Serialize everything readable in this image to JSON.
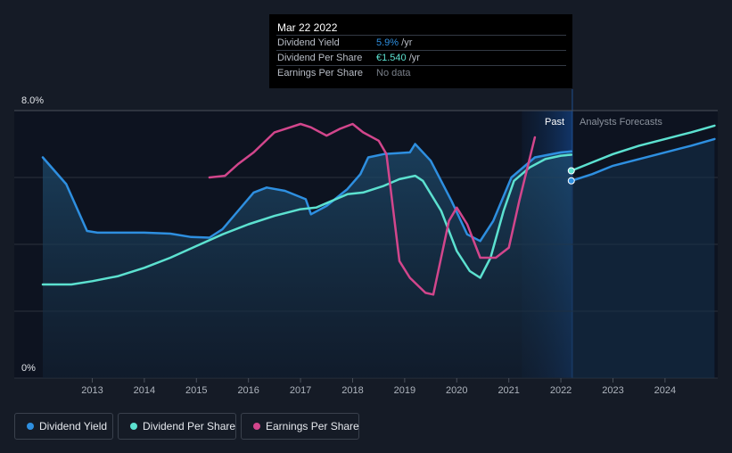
{
  "tooltip": {
    "date": "Mar 22 2022",
    "rows": [
      {
        "label": "Dividend Yield",
        "value": "5.9%",
        "suffix": " /yr",
        "color": "#2e8fe0"
      },
      {
        "label": "Dividend Per Share",
        "value": "€1.540",
        "suffix": " /yr",
        "color": "#5ce1d0"
      },
      {
        "label": "Earnings Per Share",
        "value": "No data",
        "suffix": "",
        "color": "#7a808a"
      }
    ]
  },
  "regions": {
    "past": "Past",
    "forecast": "Analysts Forecasts"
  },
  "legend": [
    {
      "label": "Dividend Yield",
      "color": "#2e8fe0"
    },
    {
      "label": "Dividend Per Share",
      "color": "#5ce1d0"
    },
    {
      "label": "Earnings Per Share",
      "color": "#d2468c"
    }
  ],
  "chart_data": {
    "type": "line",
    "title": "",
    "xlabel": "",
    "ylabel": "",
    "x_ticks": [
      "2013",
      "2014",
      "2015",
      "2016",
      "2017",
      "2018",
      "2019",
      "2020",
      "2021",
      "2022",
      "2023",
      "2024"
    ],
    "y_ticks": [
      "8.0%",
      "0%"
    ],
    "ylim": [
      0,
      8.0
    ],
    "xlim": [
      2012.05,
      2024.95
    ],
    "past_end": 2022.22,
    "forecast_start": 2021.25,
    "grid": true,
    "series": [
      {
        "name": "Dividend Yield",
        "color": "#2e8fe0",
        "points": [
          [
            2012.05,
            6.6
          ],
          [
            2012.5,
            5.8
          ],
          [
            2012.9,
            4.4
          ],
          [
            2013.1,
            4.35
          ],
          [
            2013.5,
            4.35
          ],
          [
            2014.0,
            4.35
          ],
          [
            2014.5,
            4.32
          ],
          [
            2014.9,
            4.22
          ],
          [
            2015.25,
            4.2
          ],
          [
            2015.5,
            4.45
          ],
          [
            2015.8,
            5.0
          ],
          [
            2016.1,
            5.55
          ],
          [
            2016.35,
            5.7
          ],
          [
            2016.7,
            5.6
          ],
          [
            2017.1,
            5.35
          ],
          [
            2017.2,
            4.9
          ],
          [
            2017.5,
            5.15
          ],
          [
            2017.9,
            5.65
          ],
          [
            2018.15,
            6.1
          ],
          [
            2018.3,
            6.6
          ],
          [
            2018.6,
            6.7
          ],
          [
            2019.1,
            6.75
          ],
          [
            2019.2,
            7.0
          ],
          [
            2019.5,
            6.5
          ],
          [
            2019.9,
            5.3
          ],
          [
            2020.2,
            4.3
          ],
          [
            2020.45,
            4.1
          ],
          [
            2020.7,
            4.7
          ],
          [
            2021.05,
            6.0
          ],
          [
            2021.5,
            6.6
          ],
          [
            2022.0,
            6.75
          ],
          [
            2022.2,
            6.78
          ]
        ]
      },
      {
        "name": "Dividend Per Share",
        "color": "#5ce1d0",
        "points": [
          [
            2012.05,
            2.8
          ],
          [
            2012.6,
            2.8
          ],
          [
            2013.0,
            2.9
          ],
          [
            2013.5,
            3.05
          ],
          [
            2014.0,
            3.3
          ],
          [
            2014.5,
            3.6
          ],
          [
            2015.0,
            3.95
          ],
          [
            2015.5,
            4.3
          ],
          [
            2016.0,
            4.6
          ],
          [
            2016.5,
            4.85
          ],
          [
            2017.0,
            5.05
          ],
          [
            2017.3,
            5.1
          ],
          [
            2017.6,
            5.3
          ],
          [
            2017.9,
            5.5
          ],
          [
            2018.2,
            5.55
          ],
          [
            2018.6,
            5.75
          ],
          [
            2018.9,
            5.95
          ],
          [
            2019.2,
            6.05
          ],
          [
            2019.35,
            5.9
          ],
          [
            2019.7,
            5.0
          ],
          [
            2020.0,
            3.8
          ],
          [
            2020.25,
            3.2
          ],
          [
            2020.45,
            3.0
          ],
          [
            2020.65,
            3.6
          ],
          [
            2020.9,
            5.0
          ],
          [
            2021.1,
            5.9
          ],
          [
            2021.4,
            6.3
          ],
          [
            2021.7,
            6.55
          ],
          [
            2022.0,
            6.65
          ],
          [
            2022.2,
            6.68
          ]
        ]
      },
      {
        "name": "Earnings Per Share",
        "color": "#d2468c",
        "points": [
          [
            2015.25,
            6.0
          ],
          [
            2015.55,
            6.05
          ],
          [
            2015.8,
            6.4
          ],
          [
            2016.1,
            6.75
          ],
          [
            2016.5,
            7.35
          ],
          [
            2016.8,
            7.5
          ],
          [
            2017.0,
            7.6
          ],
          [
            2017.2,
            7.5
          ],
          [
            2017.5,
            7.25
          ],
          [
            2017.75,
            7.45
          ],
          [
            2018.0,
            7.6
          ],
          [
            2018.2,
            7.35
          ],
          [
            2018.5,
            7.1
          ],
          [
            2018.65,
            6.7
          ],
          [
            2018.9,
            3.5
          ],
          [
            2019.1,
            3.0
          ],
          [
            2019.4,
            2.55
          ],
          [
            2019.55,
            2.5
          ],
          [
            2019.85,
            4.7
          ],
          [
            2020.0,
            5.1
          ],
          [
            2020.2,
            4.6
          ],
          [
            2020.45,
            3.6
          ],
          [
            2020.75,
            3.6
          ],
          [
            2021.0,
            3.9
          ],
          [
            2021.2,
            5.3
          ],
          [
            2021.5,
            7.2
          ]
        ]
      },
      {
        "name": "Dividend Yield",
        "color": "#2e8fe0",
        "forecast": true,
        "points": [
          [
            2022.2,
            5.9
          ],
          [
            2022.6,
            6.1
          ],
          [
            2023.0,
            6.35
          ],
          [
            2023.5,
            6.55
          ],
          [
            2024.0,
            6.75
          ],
          [
            2024.5,
            6.95
          ],
          [
            2024.95,
            7.15
          ]
        ]
      },
      {
        "name": "Dividend Per Share",
        "color": "#5ce1d0",
        "forecast": true,
        "points": [
          [
            2022.2,
            6.2
          ],
          [
            2022.6,
            6.45
          ],
          [
            2023.0,
            6.7
          ],
          [
            2023.5,
            6.95
          ],
          [
            2024.0,
            7.15
          ],
          [
            2024.5,
            7.35
          ],
          [
            2024.95,
            7.55
          ]
        ]
      }
    ],
    "markers": [
      {
        "series": "Dividend Per Share",
        "x": 2022.2,
        "y": 6.2,
        "color": "#5ce1d0"
      },
      {
        "series": "Dividend Yield",
        "x": 2022.2,
        "y": 5.9,
        "color": "#2e8fe0"
      }
    ]
  }
}
